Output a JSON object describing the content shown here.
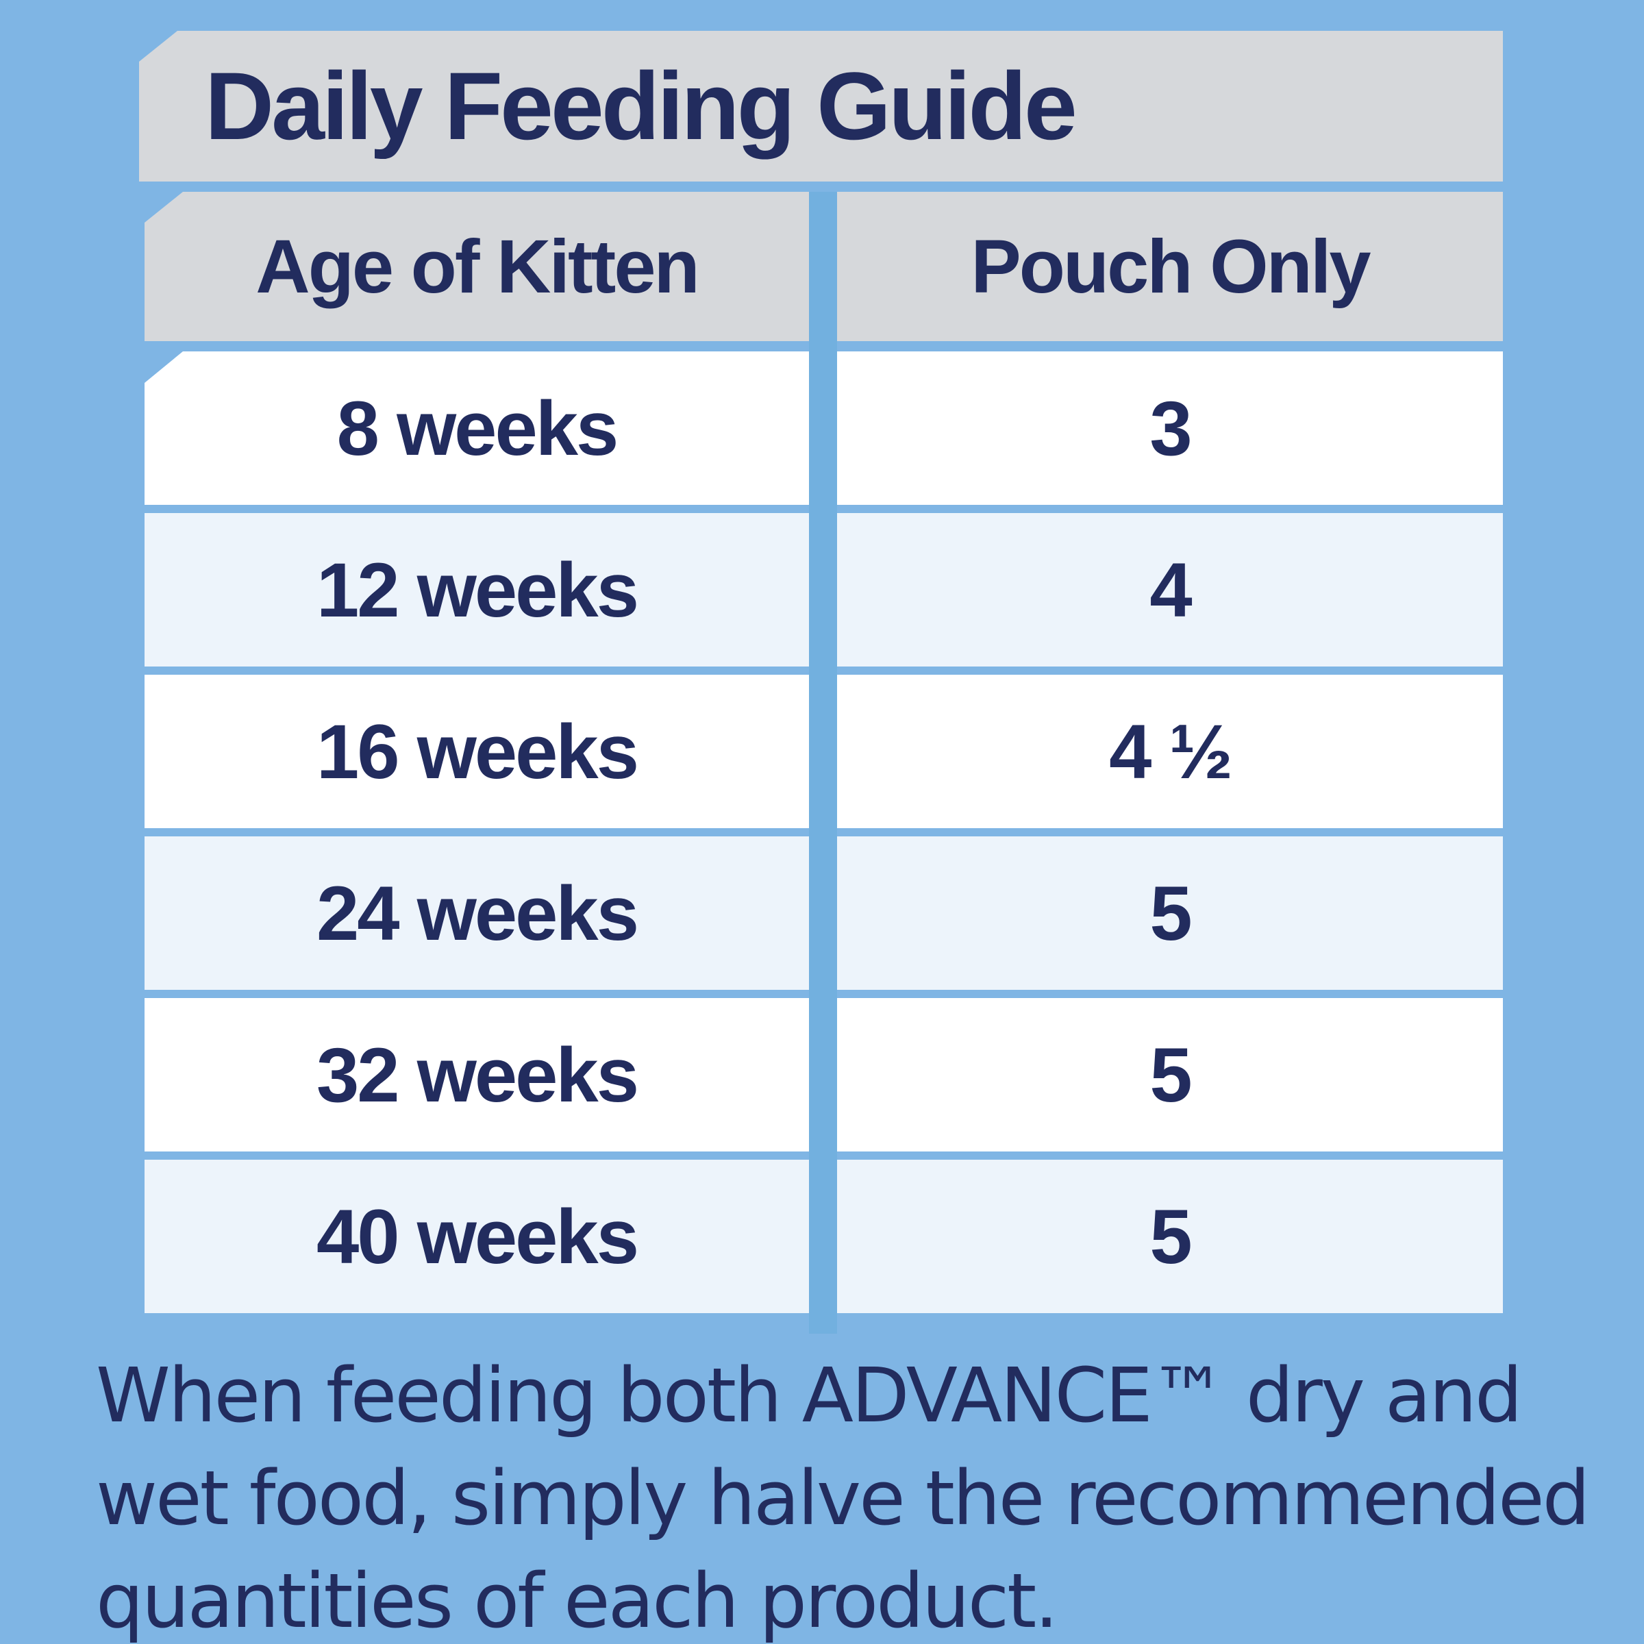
{
  "colors": {
    "background": "#7fb5e4",
    "divider_blue": "#72b0df",
    "banner_gray": "#d6d8db",
    "row_white": "#ffffff",
    "row_light_blue": "#edf4fb",
    "text_navy": "#222c5e"
  },
  "title": "Daily Feeding Guide",
  "table": {
    "columns": [
      {
        "label": "Age of Kitten"
      },
      {
        "label": "Pouch Only"
      }
    ],
    "rows": [
      {
        "age": "8 weeks",
        "pouches": "3"
      },
      {
        "age": "12 weeks",
        "pouches": "4"
      },
      {
        "age": "16 weeks",
        "pouches": "4 ½"
      },
      {
        "age": "24 weeks",
        "pouches": "5"
      },
      {
        "age": "32 weeks",
        "pouches": "5"
      },
      {
        "age": "40 weeks",
        "pouches": "5"
      }
    ]
  },
  "footnote": {
    "lines": [
      "When feeding both ADVANCE™ dry and",
      "wet food, simply halve the recommended",
      "quantities of each product."
    ]
  },
  "chart_data": {
    "type": "table",
    "title": "Daily Feeding Guide",
    "columns": [
      "Age of Kitten",
      "Pouch Only"
    ],
    "rows": [
      [
        "8 weeks",
        "3"
      ],
      [
        "12 weeks",
        "4"
      ],
      [
        "16 weeks",
        "4 ½"
      ],
      [
        "24 weeks",
        "5"
      ],
      [
        "32 weeks",
        "5"
      ],
      [
        "40 weeks",
        "5"
      ]
    ],
    "note": "When feeding both ADVANCE™ dry and wet food, simply halve the recommended quantities of each product."
  }
}
